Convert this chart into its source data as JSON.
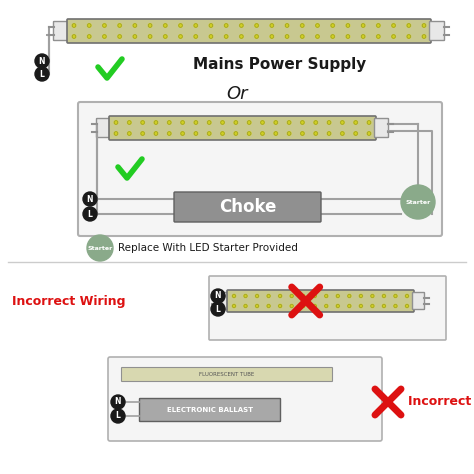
{
  "bg_color": "#ffffff",
  "tube_led_face": "#c8c890",
  "tube_edge": "#707070",
  "connector_face": "#e8e8e8",
  "connector_edge": "#909090",
  "wire_color": "#a0a0a0",
  "choke_face": "#909090",
  "choke_edge": "#606060",
  "starter_face": "#8aaa8a",
  "fixture_face": "#f5f5f5",
  "fixture_edge": "#b0b0b0",
  "ballast_face": "#a8a8a8",
  "ballast_edge": "#606060",
  "green_check": "#22cc22",
  "red_cross": "#dd1111",
  "dot_color": "#d0d020",
  "dot_edge": "#909030",
  "nl_bg": "#1a1a1a",
  "nl_fg": "#ffffff",
  "mains_text": "Mains Power Supply",
  "or_text": "Or",
  "choke_text": "Choke",
  "starter_text": "Starter",
  "replace_text": "Replace With LED Starter Provided",
  "incorrect_text1": "Incorrect Wiring",
  "incorrect_text2": "Incorrect Wiring",
  "ballast_label": "ELECTRONIC BALLAST",
  "fluoro_label": "FLUORESCENT TUBE",
  "N": "N",
  "L": "L"
}
